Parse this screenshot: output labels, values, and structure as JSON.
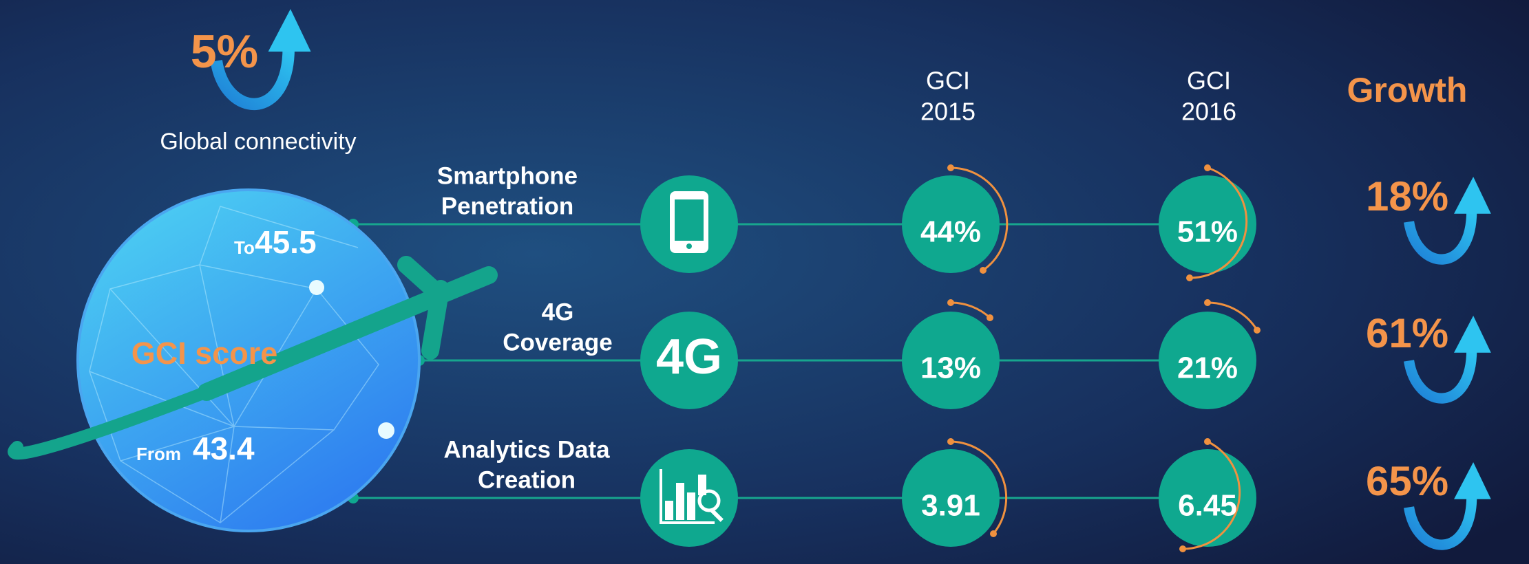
{
  "global": {
    "growth": "5%",
    "label": "Global connectivity"
  },
  "globe": {
    "title": "GCI score",
    "to_prefix": "To",
    "to_value": "45.5",
    "from_prefix": "From",
    "from_value": "43.4"
  },
  "headers": [
    {
      "line1": "GCI",
      "line2": "2015"
    },
    {
      "line1": "GCI",
      "line2": "2016"
    }
  ],
  "growth_header": "Growth",
  "rows": [
    {
      "name_lines": [
        "Smartphone",
        "Penetration"
      ],
      "gci_2015": "44%",
      "gci_2016": "51%",
      "growth": "18%"
    },
    {
      "name_lines": [
        "4G",
        "Coverage"
      ],
      "icon_text": "4G",
      "gci_2015": "13%",
      "gci_2016": "21%",
      "growth": "61%"
    },
    {
      "name_lines": [
        "Analytics Data",
        "Creation"
      ],
      "gci_2015": "3.91",
      "gci_2016": "6.45",
      "growth": "65%"
    }
  ]
}
